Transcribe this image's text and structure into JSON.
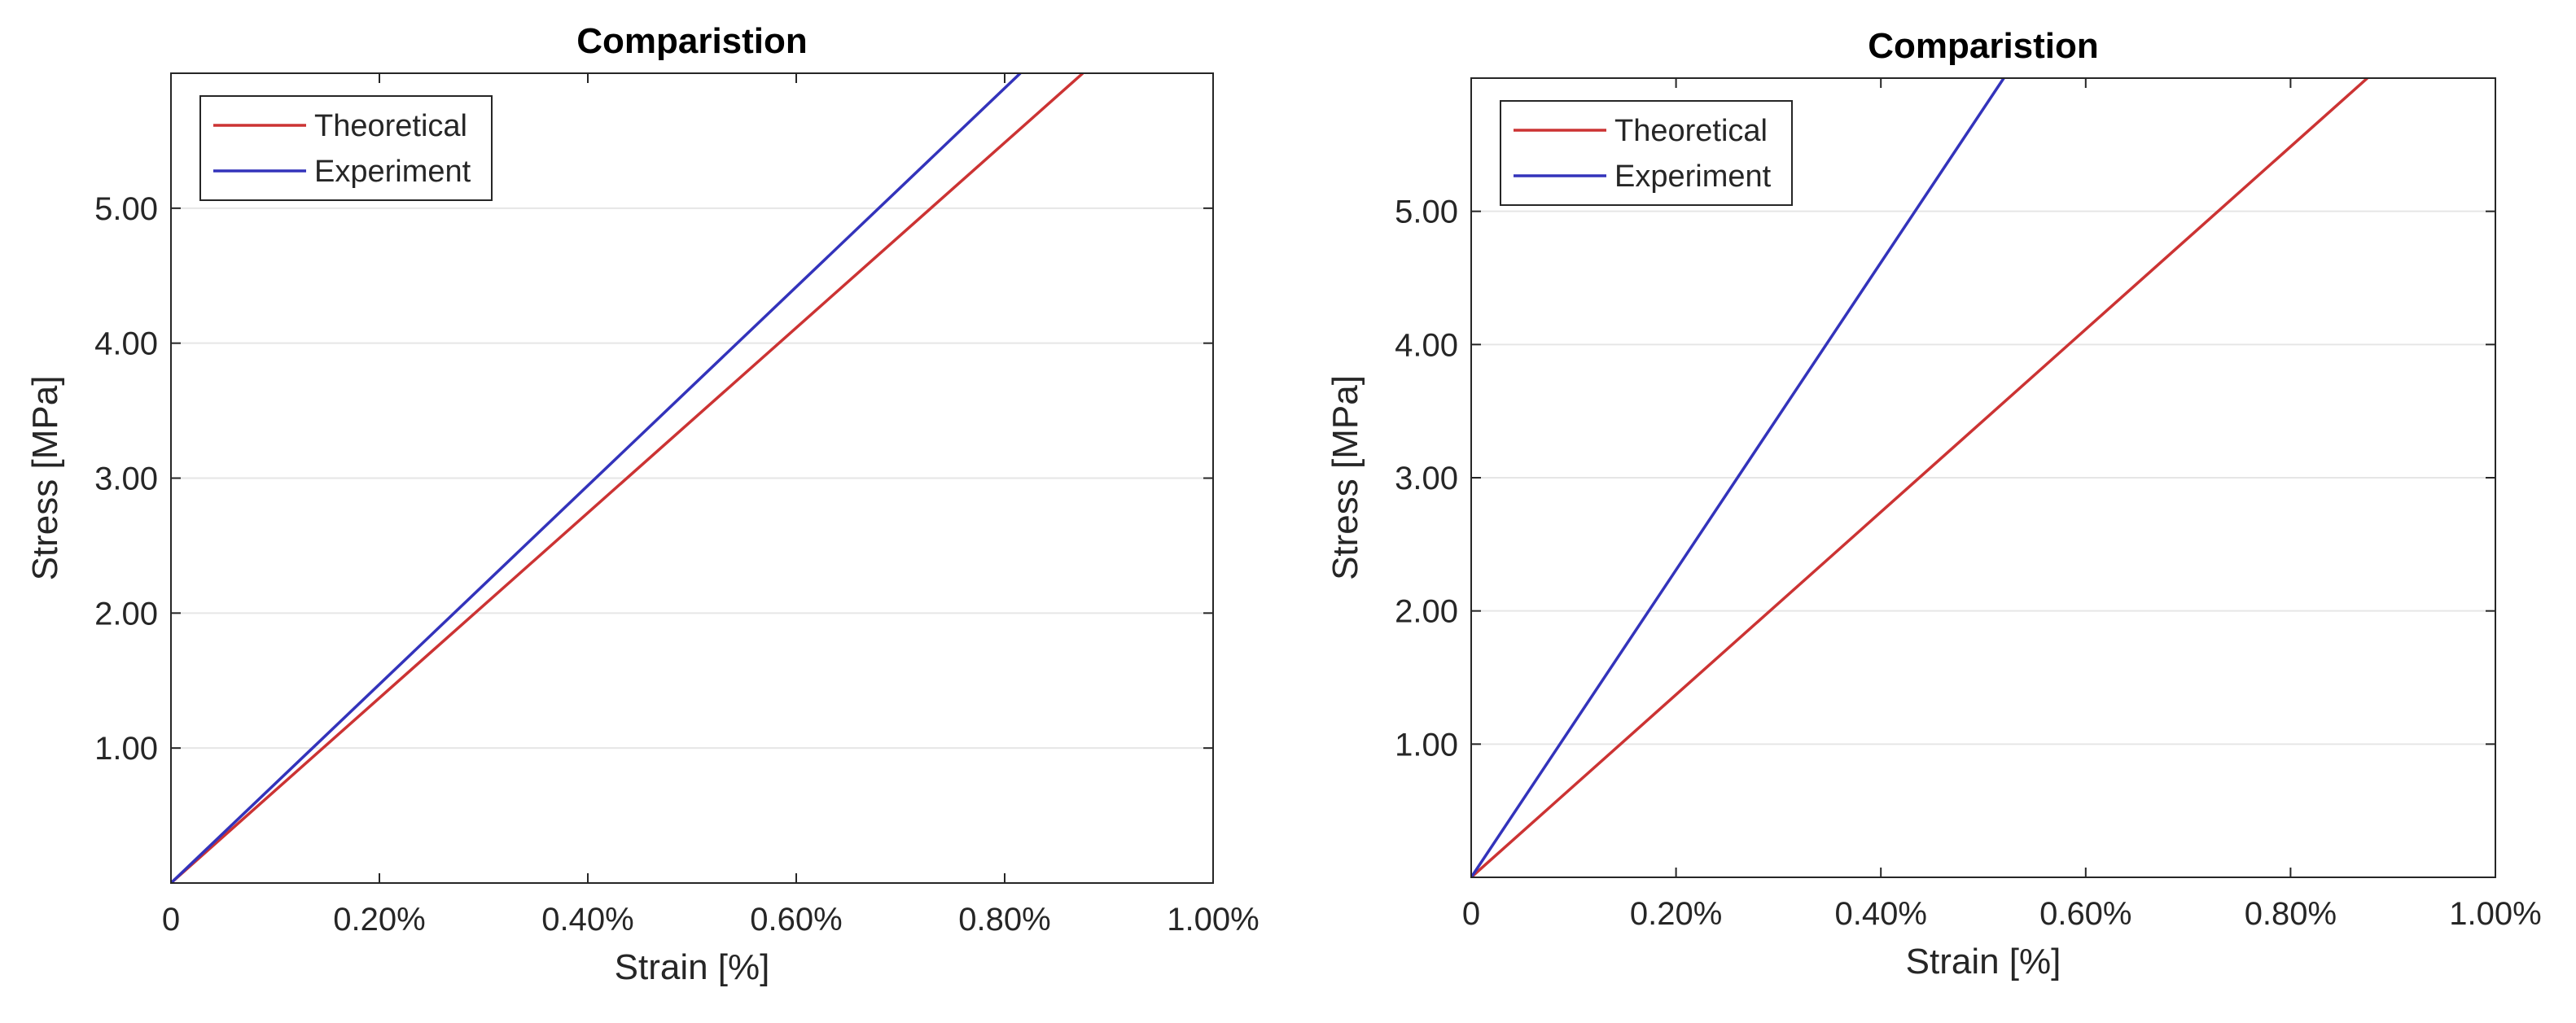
{
  "chart_data": [
    {
      "type": "line",
      "title": "Comparistion",
      "xlabel": "Strain [%]",
      "ylabel": "Stress [MPa]",
      "xlim": [
        0,
        1.0
      ],
      "ylim": [
        0,
        6.0
      ],
      "xticks": [
        0,
        0.2,
        0.4,
        0.6,
        0.8,
        1.0
      ],
      "xtick_labels": [
        "0",
        "0.20%",
        "0.40%",
        "0.60%",
        "0.80%",
        "1.00%"
      ],
      "yticks": [
        1,
        2,
        3,
        4,
        5
      ],
      "ytick_labels": [
        "1.00",
        "2.00",
        "3.00",
        "4.00",
        "5.00"
      ],
      "grid": "horizontal",
      "legend_position": "top-left",
      "series": [
        {
          "name": "Theoretical",
          "color": "#cc3333",
          "x": [
            0,
            0.875
          ],
          "y": [
            0,
            6.0
          ]
        },
        {
          "name": "Experiment",
          "color": "#3333bb",
          "x": [
            0,
            0.815
          ],
          "y": [
            0,
            6.0
          ]
        }
      ]
    },
    {
      "type": "line",
      "title": "Comparistion",
      "xlabel": "Strain [%]",
      "ylabel": "Stress [MPa]",
      "xlim": [
        0,
        1.0
      ],
      "ylim": [
        0,
        6.0
      ],
      "xticks": [
        0,
        0.2,
        0.4,
        0.6,
        0.8,
        1.0
      ],
      "xtick_labels": [
        "0",
        "0.20%",
        "0.40%",
        "0.60%",
        "0.80%",
        "1.00%"
      ],
      "yticks": [
        1,
        2,
        3,
        4,
        5
      ],
      "ytick_labels": [
        "1.00",
        "2.00",
        "3.00",
        "4.00",
        "5.00"
      ],
      "grid": "horizontal",
      "legend_position": "top-left",
      "series": [
        {
          "name": "Theoretical",
          "color": "#cc3333",
          "x": [
            0,
            0.875
          ],
          "y": [
            0,
            6.0
          ]
        },
        {
          "name": "Experiment",
          "color": "#3333bb",
          "x": [
            0,
            0.52
          ],
          "y": [
            0,
            6.0
          ]
        }
      ]
    }
  ]
}
